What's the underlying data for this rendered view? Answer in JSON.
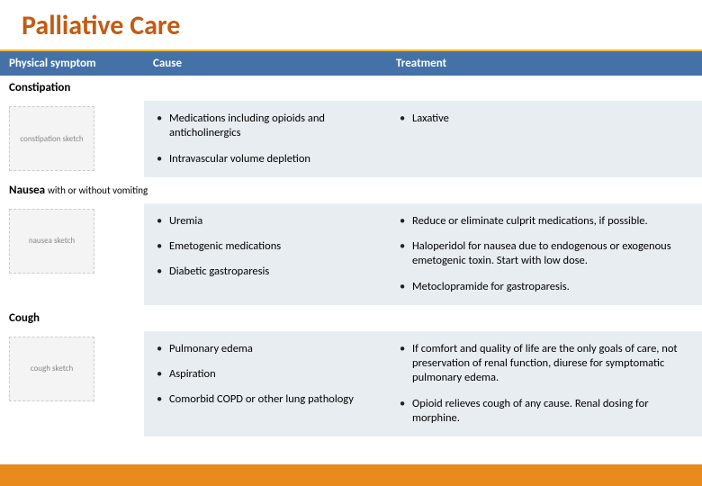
{
  "title": "Palliative Care",
  "columns": [
    "Physical symptom",
    "Cause",
    "Treatment"
  ],
  "rows": [
    {
      "symptom_html": "Constipation",
      "img_alt": "constipation sketch",
      "causes": [
        "Medications including opioids and anticholinergics",
        "Intravascular volume depletion"
      ],
      "treatments": [
        "Laxative"
      ]
    },
    {
      "symptom_html": "Nausea <span class=\"sub\">with or without vomiting</span>",
      "img_alt": "nausea sketch",
      "causes": [
        "Uremia",
        "Emetogenic medications",
        "Diabetic gastroparesis"
      ],
      "treatments": [
        "Reduce or eliminate culprit medications, if possible.",
        "Haloperidol for nausea due to endogenous or exogenous emetogenic toxin. Start with low dose.",
        "Metoclopramide for gastroparesis."
      ]
    },
    {
      "symptom_html": "Cough",
      "img_alt": "cough sketch",
      "causes": [
        "Pulmonary edema",
        "Aspiration",
        "Comorbid COPD or other lung pathology"
      ],
      "treatments": [
        "If comfort and quality of life are the only goals of care, not preservation of renal function, diurese for symptomatic pulmonary edema.",
        "Opioid relieves cough of any cause. Renal dosing for morphine."
      ]
    }
  ],
  "colors": {
    "accent": "#c55a11",
    "header_bg": "#4472a8",
    "row_bg": "#e8edf2",
    "footer": "#e88b1c"
  }
}
